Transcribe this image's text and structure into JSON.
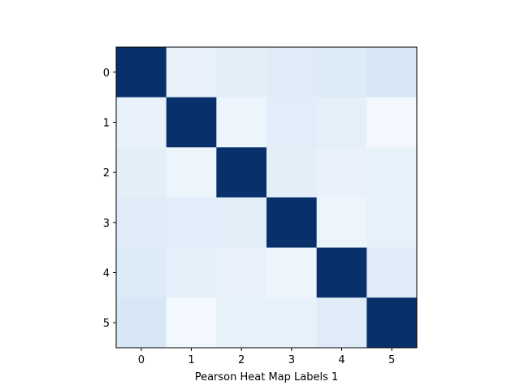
{
  "chart_data": {
    "type": "heatmap",
    "title": "",
    "xlabel": "Pearson Heat Map Labels 1",
    "ylabel": "",
    "x_categories": [
      "0",
      "1",
      "2",
      "3",
      "4",
      "5"
    ],
    "y_categories": [
      "0",
      "1",
      "2",
      "3",
      "4",
      "5"
    ],
    "colormap": "Blues",
    "vrange": [
      0.0,
      1.0
    ],
    "grid": false,
    "colorbar": false,
    "matrix": [
      [
        1.0,
        0.07,
        0.1,
        0.12,
        0.13,
        0.16
      ],
      [
        0.07,
        1.0,
        0.05,
        0.11,
        0.09,
        0.02
      ],
      [
        0.1,
        0.05,
        1.0,
        0.1,
        0.07,
        0.08
      ],
      [
        0.12,
        0.11,
        0.1,
        1.0,
        0.05,
        0.08
      ],
      [
        0.13,
        0.09,
        0.07,
        0.05,
        1.0,
        0.12
      ],
      [
        0.16,
        0.02,
        0.08,
        0.08,
        0.12,
        1.0
      ]
    ]
  }
}
